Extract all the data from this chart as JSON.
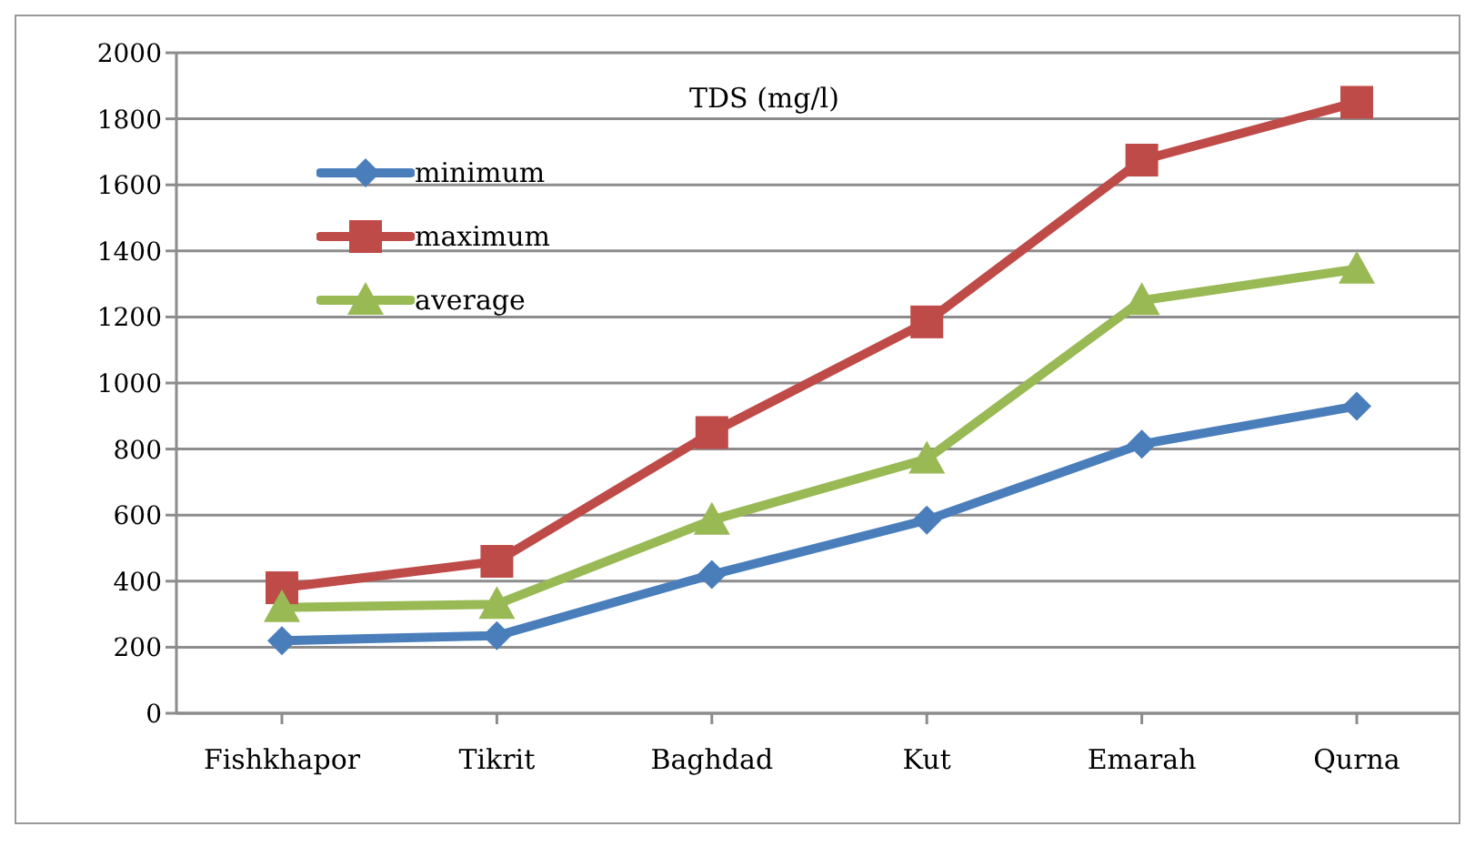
{
  "chart_data": {
    "type": "line",
    "title": "TDS (mg/l)",
    "categories": [
      "Fishkhapor",
      "Tikrit",
      "Baghdad",
      "Kut",
      "Emarah",
      "Qurna"
    ],
    "series": [
      {
        "name": "minimum",
        "color": "#4a7ebb",
        "marker": "diamond",
        "values": [
          220,
          235,
          420,
          585,
          815,
          930
        ]
      },
      {
        "name": "maximum",
        "color": "#be4b48",
        "marker": "square",
        "values": [
          380,
          460,
          850,
          1185,
          1675,
          1850
        ]
      },
      {
        "name": "average",
        "color": "#98b954",
        "marker": "triangle",
        "values": [
          320,
          330,
          585,
          770,
          1250,
          1345
        ]
      }
    ],
    "ylim": [
      0,
      2000
    ],
    "yticks": [
      0,
      200,
      400,
      600,
      800,
      1000,
      1200,
      1400,
      1600,
      1800,
      2000
    ],
    "grid": "y",
    "legend": "top left",
    "line_style": "solid"
  }
}
